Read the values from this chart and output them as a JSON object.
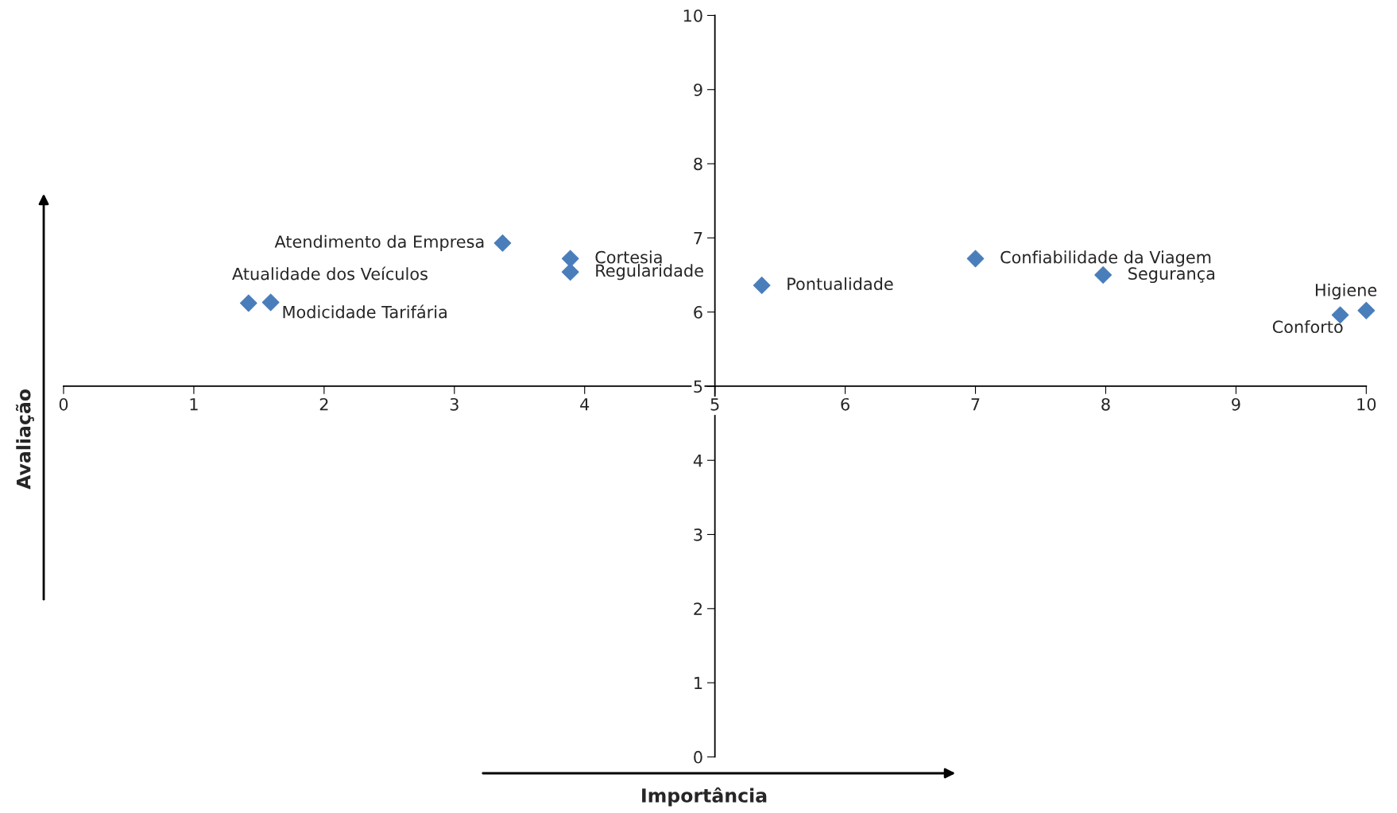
{
  "chart_data": {
    "type": "scatter",
    "xlabel": "Importância",
    "ylabel": "Avaliação",
    "series": [
      {
        "color": "#4a7ebb",
        "x": [
          1.42,
          1.59,
          3.37,
          3.89,
          3.89,
          5.36,
          7.0,
          7.98,
          9.8,
          10.0
        ],
        "values": [
          6.12,
          6.13,
          6.93,
          6.72,
          6.54,
          6.36,
          6.72,
          6.5,
          5.96,
          6.02
        ]
      }
    ],
    "annotations": [
      {
        "text": "Atualidade dos Veículos",
        "x": 1.42,
        "y": 6.12
      },
      {
        "text": "Modicidade Tarifária",
        "x": 1.59,
        "y": 6.13
      },
      {
        "text": "Atendimento da Empresa",
        "x": 3.37,
        "y": 6.93
      },
      {
        "text": "Cortesia",
        "x": 3.89,
        "y": 6.72
      },
      {
        "text": "Regularidade",
        "x": 3.89,
        "y": 6.54
      },
      {
        "text": "Pontualidade",
        "x": 5.36,
        "y": 6.36
      },
      {
        "text": "Confiabilidade da Viagem",
        "x": 7.0,
        "y": 6.72
      },
      {
        "text": "Segurança",
        "x": 7.98,
        "y": 6.5
      },
      {
        "text": "Conforto",
        "x": 9.8,
        "y": 5.96
      },
      {
        "text": "Higiene",
        "x": 10.0,
        "y": 6.02
      }
    ],
    "xlim": [
      0,
      10
    ],
    "ylim": [
      0,
      10
    ],
    "xticks": [
      0,
      1,
      2,
      3,
      4,
      5,
      6,
      7,
      8,
      9,
      10
    ],
    "yticks": [
      0,
      1,
      2,
      3,
      4,
      5,
      6,
      7,
      8,
      9,
      10
    ],
    "marker": "diamond",
    "grid": false,
    "legend": false
  }
}
